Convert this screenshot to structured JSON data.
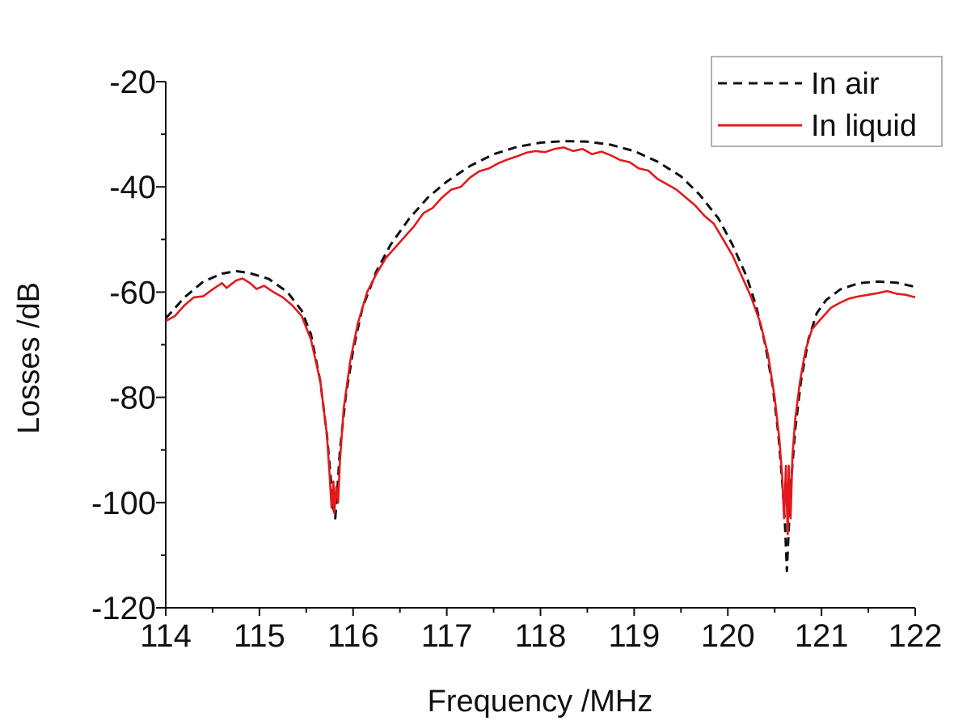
{
  "chart_data": {
    "type": "line",
    "title": "",
    "xlabel": "Frequency  /MHz",
    "ylabel": "Losses  /dB",
    "xlim": [
      114,
      122
    ],
    "ylim": [
      -120,
      -20
    ],
    "x_ticks": [
      114,
      115,
      116,
      117,
      118,
      119,
      120,
      121,
      122
    ],
    "x_tick_labels": [
      "114",
      "115",
      "116",
      "117",
      "118",
      "119",
      "120",
      "121",
      "122"
    ],
    "y_ticks": [
      -120,
      -100,
      -80,
      -60,
      -40,
      -20
    ],
    "y_tick_labels": [
      "-120",
      "-100",
      "-80",
      "-60",
      "-40",
      "-20"
    ],
    "grid": false,
    "legend": {
      "position": "top-right"
    },
    "series": [
      {
        "name": "In air",
        "color": "#111111",
        "style": "dashed",
        "points": [
          [
            114.0,
            -65
          ],
          [
            114.2,
            -61
          ],
          [
            114.4,
            -58
          ],
          [
            114.6,
            -56.5
          ],
          [
            114.75,
            -56
          ],
          [
            114.9,
            -56.4
          ],
          [
            115.1,
            -57.5
          ],
          [
            115.3,
            -60
          ],
          [
            115.45,
            -63.5
          ],
          [
            115.55,
            -68
          ],
          [
            115.65,
            -77
          ],
          [
            115.72,
            -87
          ],
          [
            115.76,
            -95
          ],
          [
            115.79,
            -101
          ],
          [
            115.81,
            -103
          ],
          [
            115.83,
            -98
          ],
          [
            115.86,
            -90
          ],
          [
            115.92,
            -80
          ],
          [
            116.0,
            -71
          ],
          [
            116.1,
            -63
          ],
          [
            116.25,
            -56
          ],
          [
            116.4,
            -51
          ],
          [
            116.6,
            -46
          ],
          [
            116.8,
            -42
          ],
          [
            117.0,
            -39
          ],
          [
            117.25,
            -36
          ],
          [
            117.5,
            -33.8
          ],
          [
            117.75,
            -32.4
          ],
          [
            118.0,
            -31.6
          ],
          [
            118.25,
            -31.3
          ],
          [
            118.5,
            -31.4
          ],
          [
            118.75,
            -32
          ],
          [
            119.0,
            -33.2
          ],
          [
            119.25,
            -35.2
          ],
          [
            119.5,
            -38
          ],
          [
            119.7,
            -41.5
          ],
          [
            119.9,
            -46
          ],
          [
            120.05,
            -51
          ],
          [
            120.2,
            -57
          ],
          [
            120.3,
            -62.5
          ],
          [
            120.4,
            -70
          ],
          [
            120.48,
            -78
          ],
          [
            120.54,
            -87
          ],
          [
            120.58,
            -96
          ],
          [
            120.61,
            -104
          ],
          [
            120.63,
            -113
          ],
          [
            120.65,
            -105
          ],
          [
            120.68,
            -95
          ],
          [
            120.72,
            -86
          ],
          [
            120.78,
            -77
          ],
          [
            120.86,
            -69
          ],
          [
            120.95,
            -64
          ],
          [
            121.05,
            -61.5
          ],
          [
            121.2,
            -59.5
          ],
          [
            121.4,
            -58.3
          ],
          [
            121.6,
            -58
          ],
          [
            121.8,
            -58.2
          ],
          [
            122.0,
            -59
          ]
        ]
      },
      {
        "name": "In liquid",
        "color": "#e31a1c",
        "style": "solid",
        "points": [
          [
            114.0,
            -65.5
          ],
          [
            114.1,
            -64.5
          ],
          [
            114.2,
            -62.5
          ],
          [
            114.3,
            -61
          ],
          [
            114.4,
            -60.8
          ],
          [
            114.5,
            -59.5
          ],
          [
            114.6,
            -58.3
          ],
          [
            114.65,
            -59.2
          ],
          [
            114.75,
            -57.8
          ],
          [
            114.82,
            -57.4
          ],
          [
            114.9,
            -58.3
          ],
          [
            114.97,
            -59.4
          ],
          [
            115.05,
            -58.8
          ],
          [
            115.15,
            -60
          ],
          [
            115.25,
            -61
          ],
          [
            115.35,
            -62.5
          ],
          [
            115.45,
            -64.5
          ],
          [
            115.55,
            -69
          ],
          [
            115.65,
            -77
          ],
          [
            115.72,
            -87
          ],
          [
            115.75,
            -95
          ],
          [
            115.77,
            -101
          ],
          [
            115.79,
            -96
          ],
          [
            115.8,
            -102
          ],
          [
            115.82,
            -97
          ],
          [
            115.84,
            -100
          ],
          [
            115.86,
            -92
          ],
          [
            115.9,
            -82
          ],
          [
            115.97,
            -73
          ],
          [
            116.05,
            -66
          ],
          [
            116.15,
            -60
          ],
          [
            116.25,
            -56.5
          ],
          [
            116.35,
            -53.5
          ],
          [
            116.45,
            -51.5
          ],
          [
            116.55,
            -49.5
          ],
          [
            116.65,
            -47.5
          ],
          [
            116.75,
            -45
          ],
          [
            116.85,
            -44
          ],
          [
            116.95,
            -42
          ],
          [
            117.05,
            -40.5
          ],
          [
            117.15,
            -40
          ],
          [
            117.25,
            -38.2
          ],
          [
            117.35,
            -37
          ],
          [
            117.45,
            -36.5
          ],
          [
            117.55,
            -35.5
          ],
          [
            117.65,
            -34.8
          ],
          [
            117.75,
            -34.2
          ],
          [
            117.85,
            -33.5
          ],
          [
            117.95,
            -33.2
          ],
          [
            118.05,
            -33.4
          ],
          [
            118.15,
            -32.8
          ],
          [
            118.25,
            -32.5
          ],
          [
            118.35,
            -33.2
          ],
          [
            118.45,
            -32.8
          ],
          [
            118.55,
            -33.8
          ],
          [
            118.65,
            -33.3
          ],
          [
            118.75,
            -34
          ],
          [
            118.85,
            -34.9
          ],
          [
            118.95,
            -35.3
          ],
          [
            119.05,
            -36.5
          ],
          [
            119.15,
            -36.9
          ],
          [
            119.25,
            -38.5
          ],
          [
            119.35,
            -39.5
          ],
          [
            119.45,
            -40.5
          ],
          [
            119.55,
            -42
          ],
          [
            119.65,
            -43.5
          ],
          [
            119.75,
            -45.5
          ],
          [
            119.85,
            -47
          ],
          [
            119.95,
            -50
          ],
          [
            120.05,
            -53
          ],
          [
            120.15,
            -57
          ],
          [
            120.25,
            -61
          ],
          [
            120.35,
            -66
          ],
          [
            120.43,
            -72
          ],
          [
            120.5,
            -80
          ],
          [
            120.55,
            -88
          ],
          [
            120.58,
            -95
          ],
          [
            120.6,
            -103
          ],
          [
            120.62,
            -93
          ],
          [
            120.63,
            -101
          ],
          [
            120.64,
            -106
          ],
          [
            120.65,
            -93
          ],
          [
            120.67,
            -103
          ],
          [
            120.69,
            -91
          ],
          [
            120.72,
            -84
          ],
          [
            120.77,
            -77
          ],
          [
            120.83,
            -71
          ],
          [
            120.9,
            -67
          ],
          [
            121.0,
            -65
          ],
          [
            121.1,
            -63
          ],
          [
            121.2,
            -62
          ],
          [
            121.3,
            -61.2
          ],
          [
            121.4,
            -60.8
          ],
          [
            121.5,
            -60.5
          ],
          [
            121.6,
            -60.2
          ],
          [
            121.7,
            -59.8
          ],
          [
            121.8,
            -60.3
          ],
          [
            121.9,
            -60.5
          ],
          [
            122.0,
            -61
          ]
        ]
      }
    ]
  },
  "legend_items": [
    {
      "label": "In air"
    },
    {
      "label": "In liquid"
    }
  ]
}
